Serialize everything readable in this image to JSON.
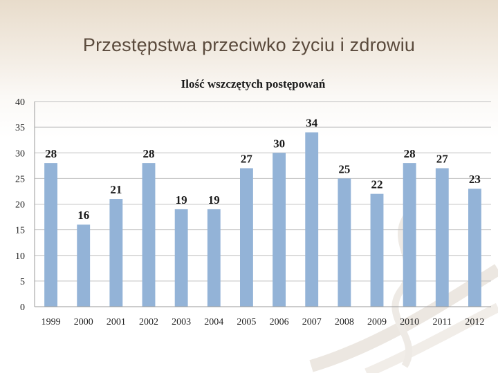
{
  "slide": {
    "title": "Przestępstwa przeciwko życiu i zdrowiu"
  },
  "chart_data": {
    "type": "bar",
    "title": "Ilość wszczętych postępowań",
    "categories": [
      "1999",
      "2000",
      "2001",
      "2002",
      "2003",
      "2004",
      "2005",
      "2006",
      "2007",
      "2008",
      "2009",
      "2010",
      "2011",
      "2012"
    ],
    "values": [
      28,
      16,
      21,
      28,
      19,
      19,
      27,
      30,
      34,
      25,
      22,
      28,
      27,
      23
    ],
    "ylim": [
      0,
      40
    ],
    "yticks": [
      0,
      5,
      10,
      15,
      20,
      25,
      30,
      35,
      40
    ],
    "grid": true,
    "legend": "none",
    "bar_color": "#93b3d7"
  }
}
